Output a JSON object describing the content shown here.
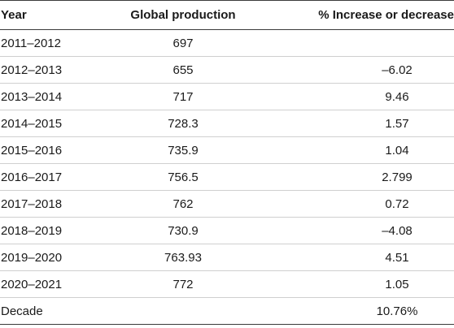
{
  "table": {
    "headers": {
      "year": "Year",
      "production": "Global production",
      "change": "% Increase or decrease"
    },
    "rows": [
      {
        "year": "2011–2012",
        "production": "697",
        "change": ""
      },
      {
        "year": "2012–2013",
        "production": "655",
        "change": "–6.02"
      },
      {
        "year": "2013–2014",
        "production": "717",
        "change": "9.46"
      },
      {
        "year": "2014–2015",
        "production": "728.3",
        "change": "1.57"
      },
      {
        "year": "2015–2016",
        "production": "735.9",
        "change": "1.04"
      },
      {
        "year": "2016–2017",
        "production": "756.5",
        "change": "2.799"
      },
      {
        "year": "2017–2018",
        "production": "762",
        "change": "0.72"
      },
      {
        "year": "2018–2019",
        "production": "730.9",
        "change": "–4.08"
      },
      {
        "year": "2019–2020",
        "production": "763.93",
        "change": "4.51"
      },
      {
        "year": "2020–2021",
        "production": "772",
        "change": "1.05"
      },
      {
        "year": "Decade",
        "production": "",
        "change": "10.76%"
      }
    ]
  }
}
